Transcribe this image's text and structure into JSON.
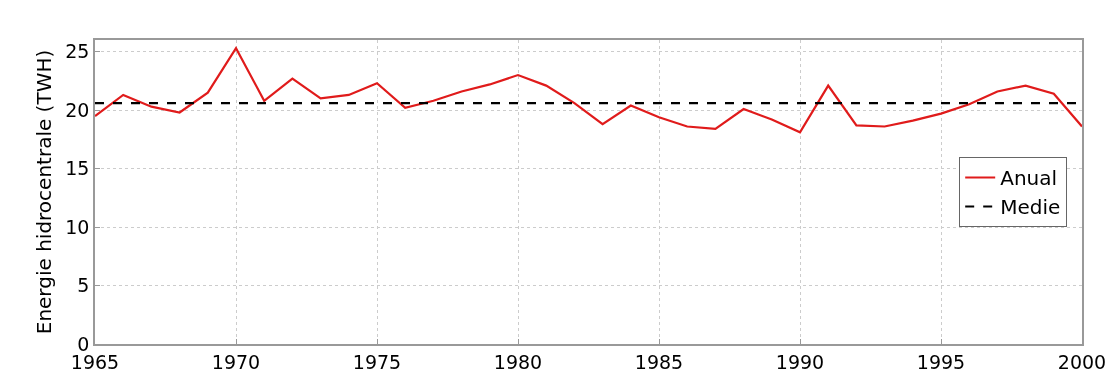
{
  "chart_data": {
    "type": "line",
    "ylabel": "Energie hidrocentrale (TWH)",
    "x": [
      1965,
      1966,
      1967,
      1968,
      1969,
      1970,
      1971,
      1972,
      1973,
      1974,
      1975,
      1976,
      1977,
      1978,
      1979,
      1980,
      1981,
      1982,
      1983,
      1984,
      1985,
      1986,
      1987,
      1988,
      1989,
      1990,
      1991,
      1992,
      1993,
      1994,
      1995,
      1996,
      1997,
      1998,
      1999,
      2000
    ],
    "series": [
      {
        "name": "Anual",
        "color": "#e01b1b",
        "line_style": "solid",
        "values": [
          19.5,
          21.3,
          20.3,
          19.8,
          21.5,
          25.3,
          20.8,
          22.7,
          21.0,
          21.3,
          22.3,
          20.2,
          20.8,
          21.6,
          22.2,
          23.0,
          22.1,
          20.6,
          18.8,
          20.4,
          19.4,
          18.6,
          18.4,
          20.1,
          19.2,
          18.1,
          22.1,
          18.7,
          18.6,
          19.1,
          19.7,
          20.5,
          21.6,
          22.1,
          21.4,
          18.6
        ]
      }
    ],
    "ref_lines": [
      {
        "axis": "y",
        "value": 20.6,
        "label": "Medie",
        "color": "#000000",
        "line_style": "dashed"
      }
    ],
    "xlim": [
      1965,
      2000
    ],
    "xticks": [
      1965,
      1970,
      1975,
      1980,
      1985,
      1990,
      1995,
      2000
    ],
    "ylim": [
      0,
      26
    ],
    "yticks": [
      0,
      5,
      10,
      15,
      20,
      25
    ],
    "grid": true,
    "legend": "right",
    "marker": "none"
  }
}
